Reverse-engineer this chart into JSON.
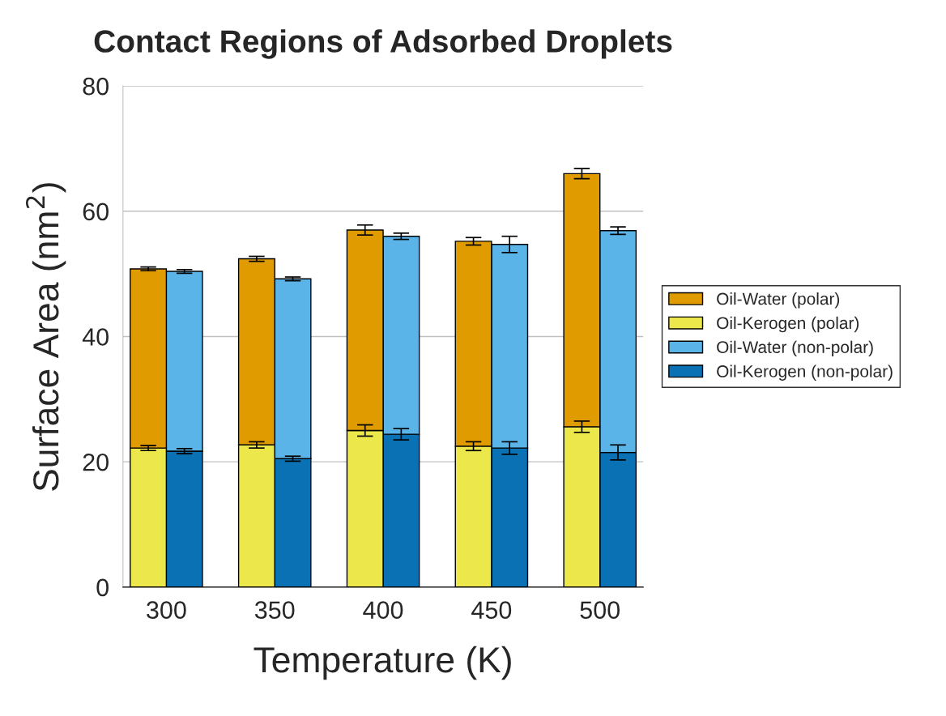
{
  "chart_data": {
    "type": "bar",
    "title": "Contact Regions of Adsorbed Droplets",
    "xlabel": "Temperature (K)",
    "ylabel": "Surface Area (nm$^{2}$)",
    "categories": [
      "300",
      null,
      null,
      "350",
      null,
      null,
      "400",
      null,
      null,
      "450",
      null,
      null,
      "500",
      null
    ],
    "stacked": true,
    "ylim": [
      0,
      80
    ],
    "yticks": [
      0,
      20,
      40,
      60,
      80
    ],
    "grid": "y",
    "legend": "right",
    "series": [
      {
        "name": "Oil-Kerogen (non-polar)",
        "color": "#0a72b4",
        "values": [
          null,
          21.7,
          null,
          null,
          20.5,
          null,
          null,
          24.4,
          null,
          null,
          22.2,
          null,
          null,
          21.5
        ],
        "errors": [
          null,
          0.4,
          null,
          null,
          0.4,
          null,
          null,
          0.9,
          null,
          null,
          1.0,
          null,
          null,
          1.2
        ]
      },
      {
        "name": "Oil-Water (non-polar)",
        "color": "#5ab4e8",
        "values": [
          null,
          28.7,
          null,
          null,
          28.7,
          null,
          null,
          31.6,
          null,
          null,
          32.5,
          null,
          null,
          35.4
        ],
        "errors": [
          null,
          0.3,
          null,
          null,
          0.3,
          null,
          null,
          0.5,
          null,
          null,
          1.3,
          null,
          null,
          0.6
        ]
      },
      {
        "name": "Oil-Kerogen (polar)",
        "color": "#ece74a",
        "values": [
          22.2,
          null,
          null,
          22.7,
          null,
          null,
          25.0,
          null,
          null,
          22.5,
          null,
          null,
          25.6,
          null
        ],
        "errors": [
          0.4,
          null,
          null,
          0.5,
          null,
          null,
          0.9,
          null,
          null,
          0.7,
          null,
          null,
          0.9,
          null
        ]
      },
      {
        "name": "Oil-Water (polar)",
        "color": "#e09b00",
        "values": [
          28.6,
          null,
          null,
          29.7,
          null,
          null,
          32.0,
          null,
          null,
          32.7,
          null,
          null,
          40.4,
          null
        ],
        "errors": [
          0.3,
          null,
          null,
          0.4,
          null,
          null,
          0.8,
          null,
          null,
          0.6,
          null,
          null,
          0.8,
          null
        ]
      }
    ]
  }
}
